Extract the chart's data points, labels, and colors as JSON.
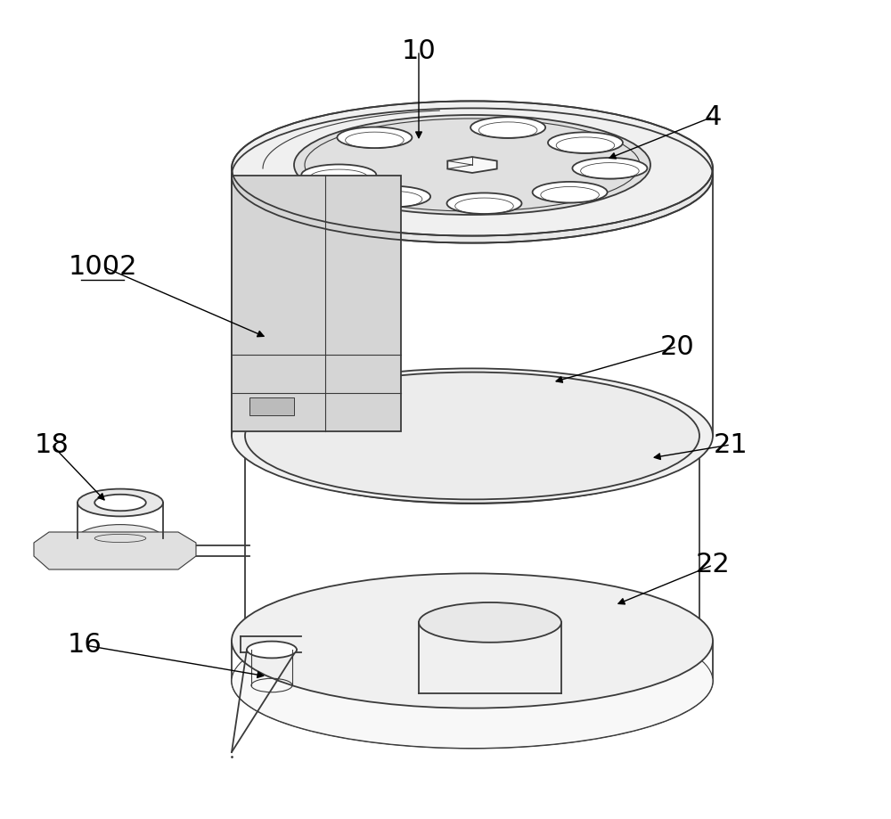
{
  "background_color": "#ffffff",
  "line_color": "#3a3a3a",
  "line_width": 1.3,
  "fig_width": 10.0,
  "fig_height": 9.19,
  "dpi": 100
}
